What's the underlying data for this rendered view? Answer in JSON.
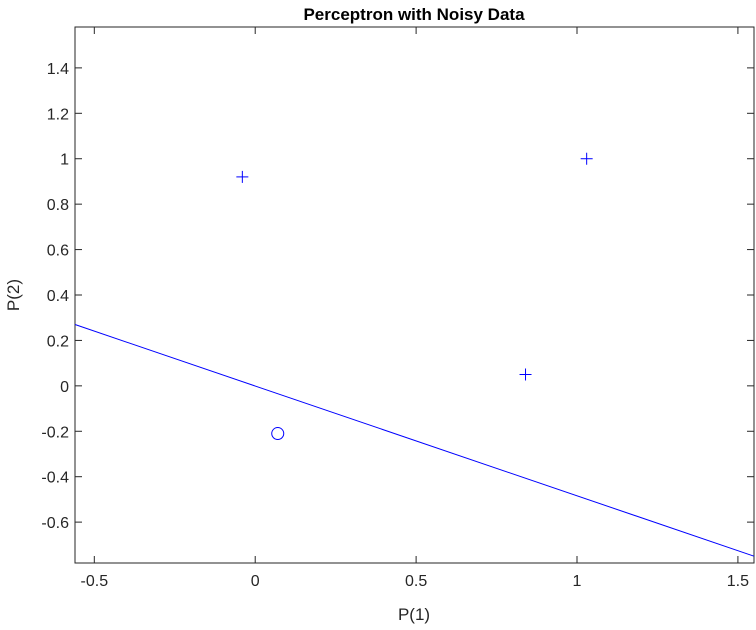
{
  "chart_data": {
    "type": "scatter",
    "title": "Perceptron with Noisy Data",
    "xlabel": "P(1)",
    "ylabel": "P(2)",
    "xlim": [
      -0.56,
      1.55
    ],
    "ylim": [
      -0.78,
      1.58
    ],
    "xticks": [
      -0.5,
      0,
      0.5,
      1,
      1.5
    ],
    "yticks": [
      -0.6,
      -0.4,
      -0.2,
      0,
      0.2,
      0.4,
      0.6,
      0.8,
      1,
      1.2,
      1.4
    ],
    "xtick_labels": [
      "-0.5",
      "0",
      "0.5",
      "1",
      "1.5"
    ],
    "ytick_labels": [
      "-0.6",
      "-0.4",
      "-0.2",
      "0",
      "0.2",
      "0.4",
      "0.6",
      "0.8",
      "1",
      "1.2",
      "1.4"
    ],
    "grid": false,
    "series": [
      {
        "marker": "plus",
        "color": "#0000ff",
        "points": [
          [
            -0.04,
            0.92
          ],
          [
            1.03,
            1.0
          ],
          [
            0.84,
            0.05
          ]
        ]
      },
      {
        "marker": "circle",
        "color": "#0000ff",
        "points": [
          [
            0.07,
            -0.21
          ]
        ]
      }
    ],
    "decision_boundary": {
      "color": "#0000ff",
      "x": [
        -0.56,
        1.55
      ],
      "y": [
        0.27,
        -0.75
      ]
    }
  }
}
